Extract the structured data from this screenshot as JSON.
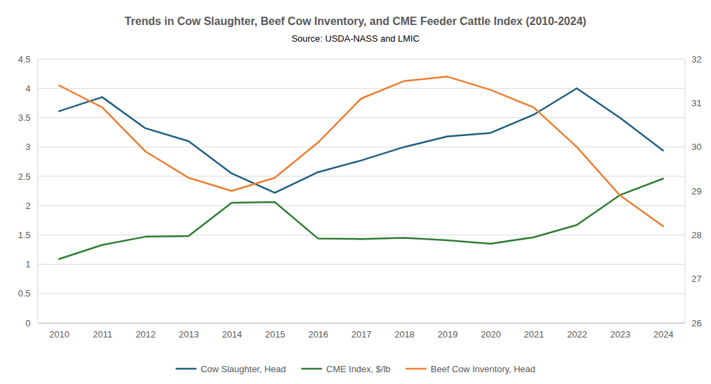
{
  "chart_data": {
    "type": "line",
    "title": "Trends in Cow Slaughter, Beef Cow Inventory, and CME Feeder Cattle Index (2010-2024)",
    "subtitle": "Source: USDA-NASS and LMIC",
    "categories": [
      "2010",
      "2011",
      "2012",
      "2013",
      "2014",
      "2015",
      "2016",
      "2017",
      "2018",
      "2019",
      "2020",
      "2021",
      "2022",
      "2023",
      "2024"
    ],
    "series": [
      {
        "name": "Cow Slaughter, Head",
        "color": "#1f5f80",
        "values": [
          3.61,
          3.85,
          3.32,
          3.1,
          2.55,
          2.22,
          2.57,
          2.77,
          3.0,
          3.18,
          3.24,
          3.55,
          4.0,
          3.5,
          2.94
        ]
      },
      {
        "name": "CME Index, $/lb",
        "color": "#2e7d32",
        "values": [
          1.09,
          1.33,
          1.47,
          1.48,
          2.05,
          2.06,
          1.44,
          1.43,
          1.45,
          1.41,
          1.35,
          1.46,
          1.67,
          2.18,
          2.46
        ]
      },
      {
        "name": "Beef Cow Inventory, Head",
        "color": "#ed7d31",
        "axis": "y2",
        "values": [
          31.4,
          30.9,
          29.9,
          29.3,
          29.0,
          29.3,
          30.1,
          31.1,
          31.5,
          31.6,
          31.3,
          30.9,
          30.0,
          28.9,
          28.2
        ]
      }
    ],
    "ylim": [
      0,
      4.5
    ],
    "yticks": [
      0,
      0.5,
      1,
      1.5,
      2,
      2.5,
      3,
      3.5,
      4,
      4.5
    ],
    "y2lim": [
      26,
      32
    ],
    "y2ticks": [
      26,
      27,
      28,
      29,
      30,
      31,
      32
    ],
    "grid": true,
    "legend": "bottom"
  }
}
